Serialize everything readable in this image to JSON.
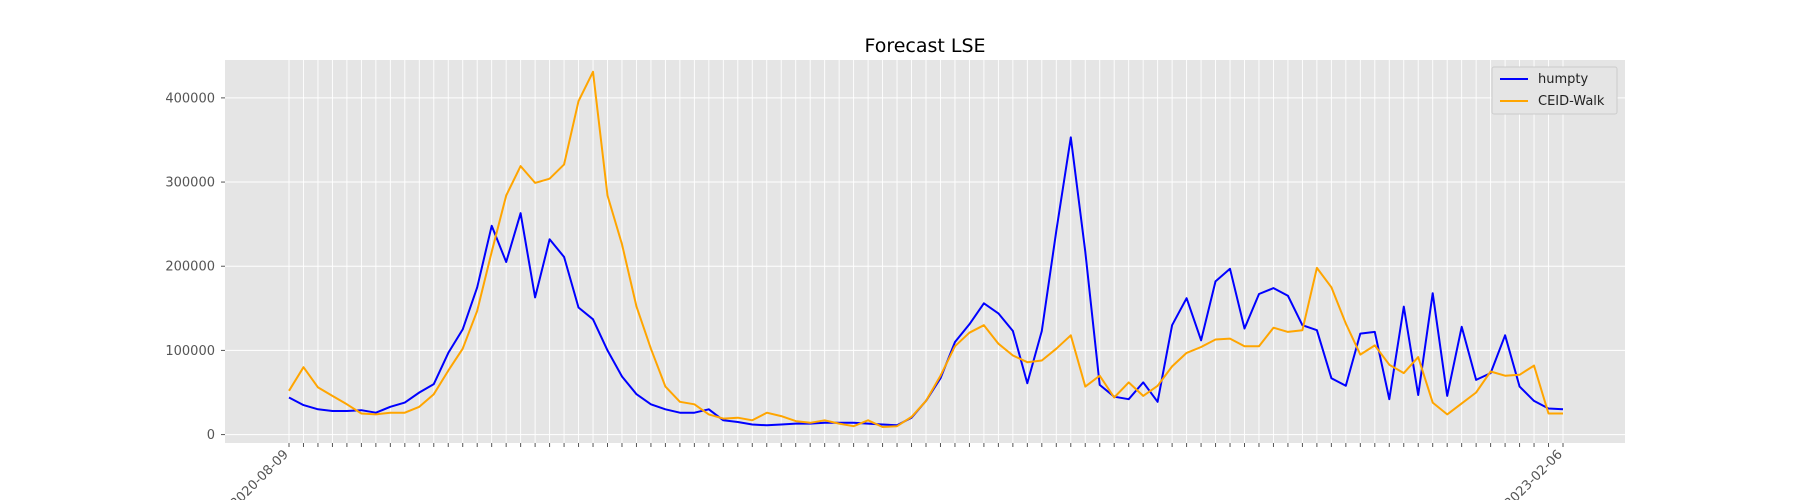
{
  "chart_data": {
    "type": "line",
    "title": "Forecast LSE",
    "xlabel": "",
    "ylabel": "",
    "ylim": [
      -10000,
      445000
    ],
    "yticks": [
      0,
      100000,
      200000,
      300000,
      400000
    ],
    "grid": true,
    "legend_position": "top-right",
    "x_first_label": "2020-08-09",
    "x_last_label": "2023-02-06",
    "series": [
      {
        "name": "humpty",
        "color": "#0000ff",
        "values": [
          44000,
          35000,
          30000,
          28000,
          28000,
          29000,
          26000,
          33000,
          38000,
          50000,
          60000,
          97000,
          125000,
          175000,
          248000,
          205000,
          263000,
          163000,
          232000,
          211000,
          151000,
          137000,
          100000,
          69000,
          48000,
          36000,
          30000,
          26000,
          26000,
          30000,
          17000,
          15000,
          12000,
          11000,
          12000,
          13000,
          13000,
          14000,
          14000,
          14000,
          13000,
          12000,
          11000,
          20000,
          40000,
          67000,
          110000,
          131000,
          156000,
          144000,
          123000,
          61000,
          123000,
          242000,
          353000,
          217000,
          59000,
          45000,
          42000,
          62000,
          39000,
          130000,
          162000,
          112000,
          182000,
          197000,
          126000,
          167000,
          174000,
          165000,
          130000,
          124000,
          67000,
          58000,
          120000,
          122000,
          42000,
          152000,
          47000,
          168000,
          46000,
          128000,
          65000,
          73000,
          118000,
          57000,
          40000,
          31000,
          30000
        ]
      },
      {
        "name": "CEID-Walk",
        "color": "#ffa500",
        "values": [
          52000,
          80000,
          56000,
          46000,
          36000,
          25000,
          24000,
          26000,
          26000,
          33000,
          48000,
          76000,
          102000,
          147000,
          217000,
          284000,
          319000,
          299000,
          304000,
          321000,
          396000,
          431000,
          284000,
          226000,
          152000,
          102000,
          57000,
          39000,
          36000,
          24000,
          19000,
          20000,
          17000,
          26000,
          22000,
          16000,
          14000,
          17000,
          13000,
          10000,
          17000,
          9000,
          10000,
          21000,
          40000,
          70000,
          105000,
          121000,
          130000,
          108000,
          94000,
          86000,
          88000,
          102000,
          118000,
          57000,
          70000,
          44000,
          62000,
          46000,
          58000,
          81000,
          97000,
          104000,
          113000,
          114000,
          105000,
          105000,
          127000,
          122000,
          124000,
          198000,
          175000,
          132000,
          95000,
          106000,
          83000,
          73000,
          92000,
          38000,
          24000,
          37000,
          50000,
          75000,
          70000,
          71000,
          82000,
          25000,
          25000
        ]
      }
    ]
  }
}
